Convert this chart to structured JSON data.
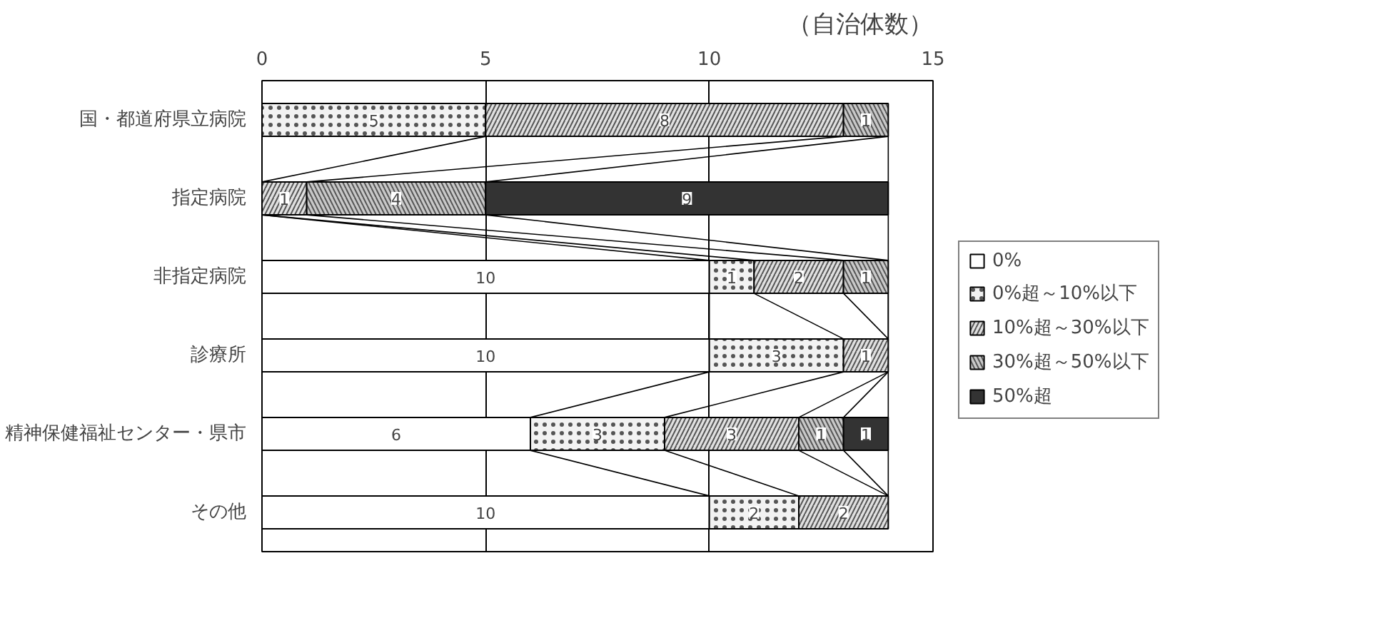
{
  "chart_data": {
    "type": "bar",
    "orientation": "horizontal",
    "stacked": true,
    "xlabel": "（自治体数）",
    "categories": [
      "国・都道府県立病院",
      "指定病院",
      "非指定病院",
      "診療所",
      "精神保健福祉センター・県市",
      "その他"
    ],
    "series": [
      {
        "name": "0%",
        "color": "#ffffff",
        "values": [
          0,
          0,
          10,
          10,
          6,
          10
        ],
        "value_labels": [
          null,
          null,
          "10",
          "10",
          "6",
          "10"
        ]
      },
      {
        "name": "0%超～10%以下",
        "color": "#f2f2f2",
        "values": [
          5,
          0,
          1,
          3,
          3,
          2
        ],
        "value_labels": [
          "5",
          null,
          "1",
          "3",
          "3",
          "2"
        ]
      },
      {
        "name": "10%超～30%以下",
        "color": "#e0e0e0",
        "values": [
          8,
          1,
          2,
          1,
          3,
          2
        ],
        "value_labels": [
          "8",
          "1",
          "2",
          "1",
          "3",
          "2"
        ]
      },
      {
        "name": "30%超～50%以下",
        "color": "#c8c8c8",
        "values": [
          1,
          4,
          1,
          0,
          1,
          0
        ],
        "value_labels": [
          "1",
          "4",
          "1",
          null,
          "1",
          null
        ]
      },
      {
        "name": "50%超",
        "color": "#333333",
        "values": [
          0,
          9,
          0,
          0,
          1,
          0
        ],
        "value_labels": [
          null,
          "9",
          null,
          null,
          "1",
          null
        ]
      }
    ],
    "xlim": [
      0,
      15
    ],
    "xticks": [
      0,
      5,
      10,
      15
    ],
    "grid": "x",
    "legend": "right"
  }
}
